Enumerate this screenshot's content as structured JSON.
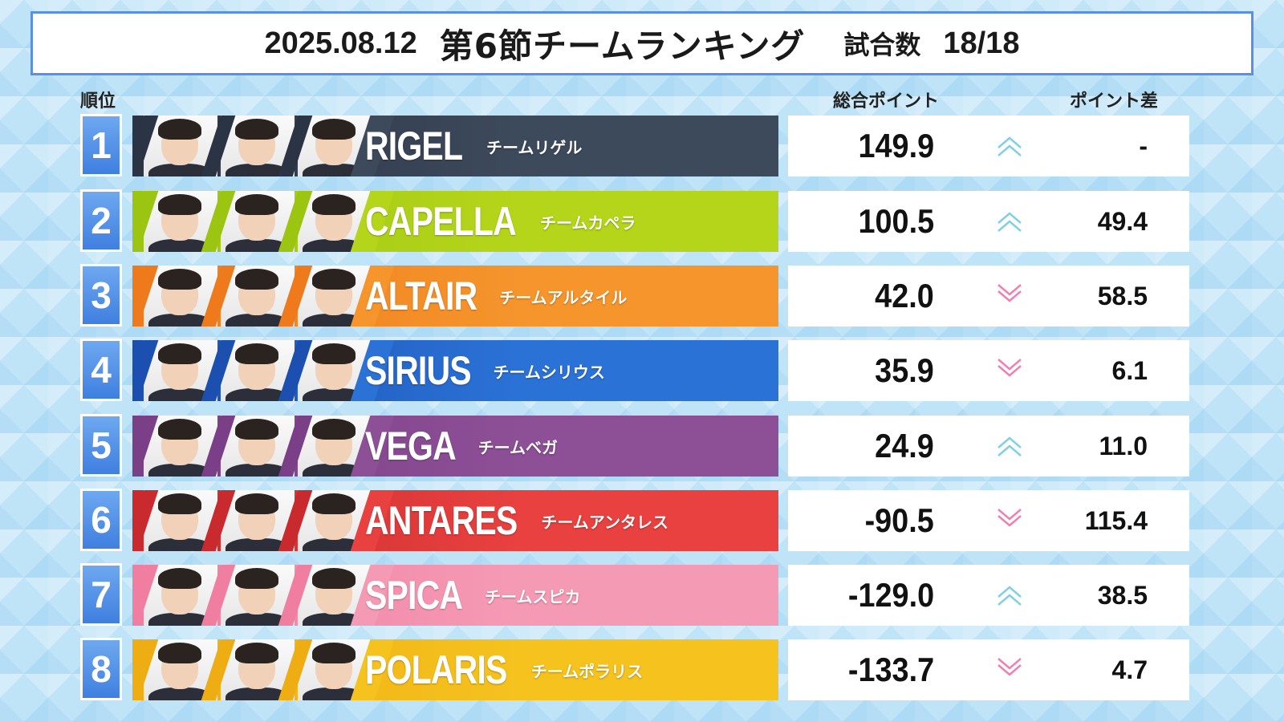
{
  "header": {
    "date": "2025.08.12",
    "title": "第6節チームランキング",
    "games_label": "試合数",
    "games_value": "18/18"
  },
  "columns": {
    "rank": "順位",
    "total": "総合ポイント",
    "diff": "ポイント差"
  },
  "colors": {
    "up_arrow": "#7fd0e6",
    "down_arrow": "#f07fb4"
  },
  "teams": [
    {
      "rank": "1",
      "name_en": "RIGEL",
      "name_jp": "チームリゲル",
      "total": "149.9",
      "trend": "up",
      "diff": "-",
      "color": "#3d4a5c",
      "color2": "#2b3444"
    },
    {
      "rank": "2",
      "name_en": "CAPELLA",
      "name_jp": "チームカペラ",
      "total": "100.5",
      "trend": "up",
      "diff": "49.4",
      "color": "#b5d51a",
      "color2": "#9cc512"
    },
    {
      "rank": "3",
      "name_en": "ALTAIR",
      "name_jp": "チームアルタイル",
      "total": "42.0",
      "trend": "down",
      "diff": "58.5",
      "color": "#f5952c",
      "color2": "#ee7a1c"
    },
    {
      "rank": "4",
      "name_en": "SIRIUS",
      "name_jp": "チームシリウス",
      "total": "35.9",
      "trend": "down",
      "diff": "6.1",
      "color": "#2b72d6",
      "color2": "#1b4fb0"
    },
    {
      "rank": "5",
      "name_en": "VEGA",
      "name_jp": "チームベガ",
      "total": "24.9",
      "trend": "up",
      "diff": "11.0",
      "color": "#8d4f96",
      "color2": "#7a3f86"
    },
    {
      "rank": "6",
      "name_en": "ANTARES",
      "name_jp": "チームアンタレス",
      "total": "-90.5",
      "trend": "down",
      "diff": "115.4",
      "color": "#e8413f",
      "color2": "#c92a2e"
    },
    {
      "rank": "7",
      "name_en": "SPICA",
      "name_jp": "チームスピカ",
      "total": "-129.0",
      "trend": "up",
      "diff": "38.5",
      "color": "#f59ab5",
      "color2": "#ef7ea1"
    },
    {
      "rank": "8",
      "name_en": "POLARIS",
      "name_jp": "チームポラリス",
      "total": "-133.7",
      "trend": "down",
      "diff": "4.7",
      "color": "#f5c21e",
      "color2": "#eead12"
    }
  ]
}
